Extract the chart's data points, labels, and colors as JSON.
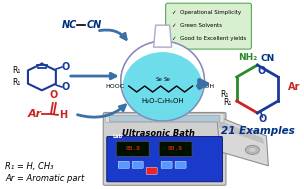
{
  "background_color": "#ffffff",
  "fig_width": 3.04,
  "fig_height": 1.89,
  "dpi": 100,
  "elements": {
    "flask_liquid": "H₂O-C₂H₅OH",
    "bath_label": "Ultrasonic Bath",
    "bullet_points": [
      "✓  Operational Simplicity",
      "✓  Green Solvents",
      "✓  Good to Excellent yields"
    ],
    "examples_label": "21 Examples",
    "bottom_label1": "R₁ = H, CH₃",
    "bottom_label2": "Ar = Aromatic part",
    "arrow_color": "#3a6fa8",
    "green_color": "#2a8a2a",
    "blue_color": "#1a3a9a",
    "red_color": "#cc2222",
    "dark_blue": "#003080",
    "teal": "#55d8e8",
    "bath_blue": "#1a3acc",
    "silver": "#c8c8c8"
  }
}
